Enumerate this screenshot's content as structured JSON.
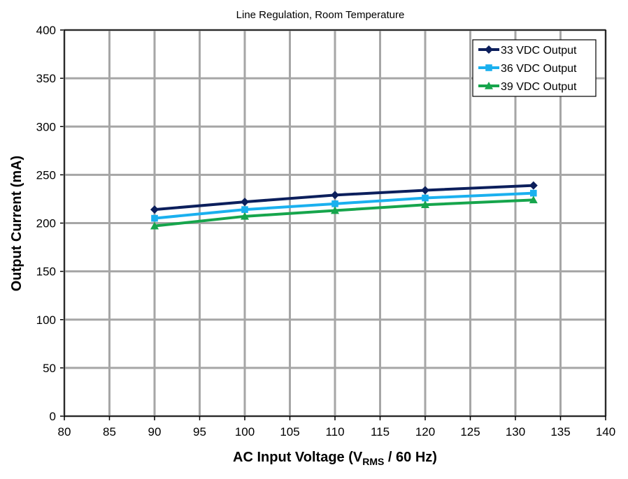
{
  "chart_data": {
    "type": "line",
    "title": "Line Regulation, Room Temperature",
    "xlabel": [
      "AC Input Voltage (V",
      "RMS",
      " / 60 Hz)"
    ],
    "ylabel": "Output Current (mA)",
    "x": [
      90,
      100,
      110,
      120,
      132
    ],
    "series": [
      {
        "name": "33 VDC Output",
        "color": "#0c1f5c",
        "marker": "diamond",
        "values": [
          214,
          222,
          229,
          234,
          239
        ]
      },
      {
        "name": "36 VDC Output",
        "color": "#1ab0ef",
        "marker": "square",
        "values": [
          205,
          214,
          220,
          226,
          231
        ]
      },
      {
        "name": "39 VDC Output",
        "color": "#16a54c",
        "marker": "triangle",
        "values": [
          197,
          207,
          213,
          219,
          224
        ]
      }
    ],
    "xlim": [
      80,
      140
    ],
    "xticks": [
      80,
      85,
      90,
      95,
      100,
      105,
      110,
      115,
      120,
      125,
      130,
      135,
      140
    ],
    "ylim": [
      0,
      400
    ],
    "yticks": [
      0,
      50,
      100,
      150,
      200,
      250,
      300,
      350,
      400
    ],
    "grid": true,
    "legend": "upper right"
  }
}
